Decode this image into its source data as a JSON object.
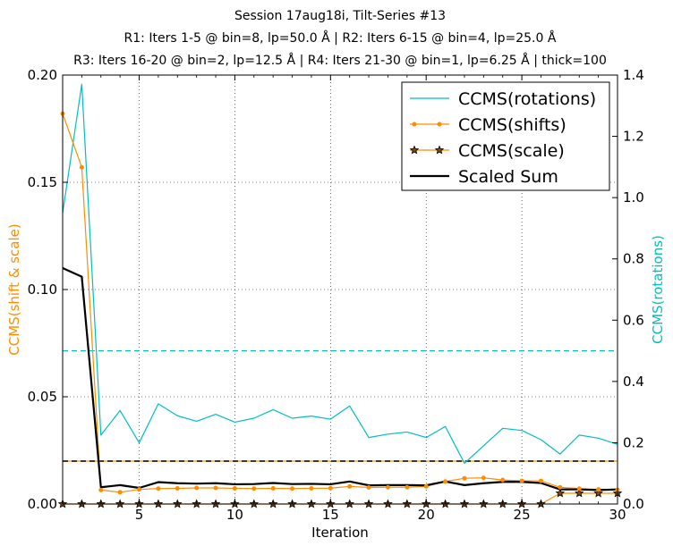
{
  "chart_data": {
    "type": "line",
    "title_lines": [
      "Session 17aug18i, Tilt-Series #13",
      "R1: Iters 1-5 @ bin=8, lp=50.0 Å | R2: Iters 6-15 @ bin=4, lp=25.0 Å",
      "R3: Iters 16-20 @ bin=2, lp=12.5 Å | R4: Iters 21-30 @ bin=1, lp=6.25 Å | thick=100"
    ],
    "xlabel": "Iteration",
    "ylabel_left": "CCMS(shift & scale)",
    "ylabel_right": "CCMS(rotations)",
    "xlim": [
      1,
      30
    ],
    "ylim_left": [
      0,
      0.2
    ],
    "ylim_right": [
      0,
      1.4
    ],
    "x_ticks": [
      "5",
      "10",
      "15",
      "20",
      "25",
      "30"
    ],
    "y_ticks_left": [
      "0.00",
      "0.05",
      "0.10",
      "0.15",
      "0.20"
    ],
    "y_ticks_right": [
      "0.0",
      "0.2",
      "0.4",
      "0.6",
      "0.8",
      "1.0",
      "1.2",
      "1.4"
    ],
    "grid": true,
    "legend_position": "top-right",
    "colors": {
      "rotations": "#00bfbf",
      "shifts": "#ff8c00",
      "scale": "#ff8c00",
      "sum": "#000000",
      "scale_marker_fill": "#8b4513"
    },
    "series": [
      {
        "name": "CCMS(rotations)",
        "axis": "right",
        "x": [
          1,
          2,
          3,
          4,
          5,
          6,
          7,
          8,
          9,
          10,
          11,
          12,
          13,
          14,
          15,
          16,
          17,
          18,
          19,
          20,
          21,
          22,
          23,
          24,
          25,
          26,
          27,
          28,
          29,
          30
        ],
        "values": [
          0.95,
          1.37,
          0.225,
          0.305,
          0.2,
          0.327,
          0.288,
          0.27,
          0.293,
          0.267,
          0.28,
          0.308,
          0.28,
          0.287,
          0.277,
          0.32,
          0.217,
          0.228,
          0.235,
          0.217,
          0.253,
          0.133,
          0.19,
          0.247,
          0.24,
          0.21,
          0.163,
          0.225,
          0.215,
          0.195
        ]
      },
      {
        "name": "CCMS(shifts)",
        "axis": "left",
        "x": [
          1,
          2,
          3,
          4,
          5,
          6,
          7,
          8,
          9,
          10,
          11,
          12,
          13,
          14,
          15,
          16,
          17,
          18,
          19,
          20,
          21,
          22,
          23,
          24,
          25,
          26,
          27,
          28,
          29,
          30
        ],
        "values": [
          0.182,
          0.157,
          0.0065,
          0.0055,
          0.0068,
          0.0072,
          0.0073,
          0.0075,
          0.0075,
          0.0073,
          0.0072,
          0.0073,
          0.0072,
          0.0073,
          0.0074,
          0.0082,
          0.0077,
          0.0078,
          0.0078,
          0.0082,
          0.0105,
          0.012,
          0.0122,
          0.0112,
          0.0108,
          0.0108,
          0.0078,
          0.0072,
          0.0068,
          0.0066
        ]
      },
      {
        "name": "CCMS(scale)",
        "axis": "left",
        "x": [
          1,
          2,
          3,
          4,
          5,
          6,
          7,
          8,
          9,
          10,
          11,
          12,
          13,
          14,
          15,
          16,
          17,
          18,
          19,
          20,
          21,
          22,
          23,
          24,
          25,
          26,
          27,
          28,
          29,
          30
        ],
        "values": [
          0,
          0,
          0,
          0,
          0,
          0,
          0,
          0,
          0,
          0,
          0,
          0,
          0,
          0,
          0,
          0,
          0,
          0,
          0,
          0,
          0,
          0,
          0,
          0,
          0,
          0,
          0.005,
          0.005,
          0.005,
          0.005
        ]
      },
      {
        "name": "Scaled Sum",
        "axis": "left",
        "x": [
          1,
          2,
          3,
          4,
          5,
          6,
          7,
          8,
          9,
          10,
          11,
          12,
          13,
          14,
          15,
          16,
          17,
          18,
          19,
          20,
          21,
          22,
          23,
          24,
          25,
          26,
          27,
          28,
          29,
          30
        ],
        "values": [
          0.11,
          0.106,
          0.0078,
          0.0088,
          0.0075,
          0.0102,
          0.0097,
          0.0095,
          0.0097,
          0.0092,
          0.0093,
          0.0098,
          0.0093,
          0.0094,
          0.0092,
          0.0105,
          0.0087,
          0.0088,
          0.0088,
          0.0087,
          0.0105,
          0.0088,
          0.0097,
          0.0103,
          0.0103,
          0.0098,
          0.0068,
          0.0068,
          0.0065,
          0.0068
        ]
      }
    ],
    "reference_lines": [
      {
        "axis": "left",
        "value": 0.02,
        "color": "#ff8c00",
        "style": "solid"
      },
      {
        "axis": "left",
        "value": 0.02,
        "color": "#000000",
        "style": "dashed"
      },
      {
        "axis": "right",
        "value": 0.5,
        "color": "#00bfbf",
        "style": "dashed"
      }
    ]
  }
}
